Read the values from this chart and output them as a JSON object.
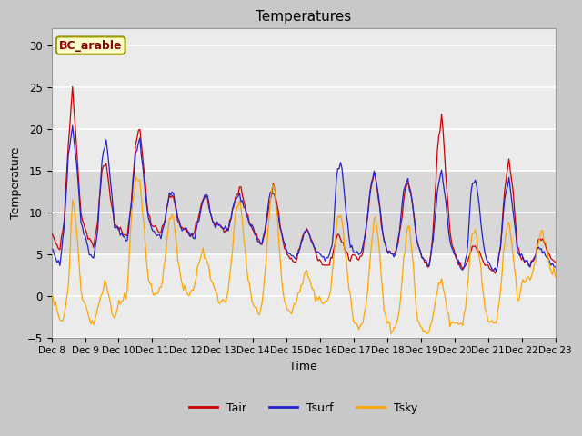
{
  "title": "Temperatures",
  "xlabel": "Time",
  "ylabel": "Temperature",
  "ylim": [
    -5,
    32
  ],
  "yticks": [
    -5,
    0,
    5,
    10,
    15,
    20,
    25,
    30
  ],
  "annotation_text": "BC_arable",
  "annotation_color": "#8B0000",
  "annotation_bg": "#FFFFCC",
  "line_colors": {
    "Tair": "#CC0000",
    "Tsurf": "#2222CC",
    "Tsky": "#FFA500"
  },
  "legend_labels": [
    "Tair",
    "Tsurf",
    "Tsky"
  ],
  "plot_bg": "#EBEBEB",
  "fig_bg": "#C8C8C8",
  "grid_color": "#FFFFFF",
  "n_days": 15,
  "hours_per_day": 24,
  "start_day": 8,
  "shaded_band_lo": 5,
  "shaded_band_hi": 15,
  "shaded_band_color": "#D8D8D8"
}
